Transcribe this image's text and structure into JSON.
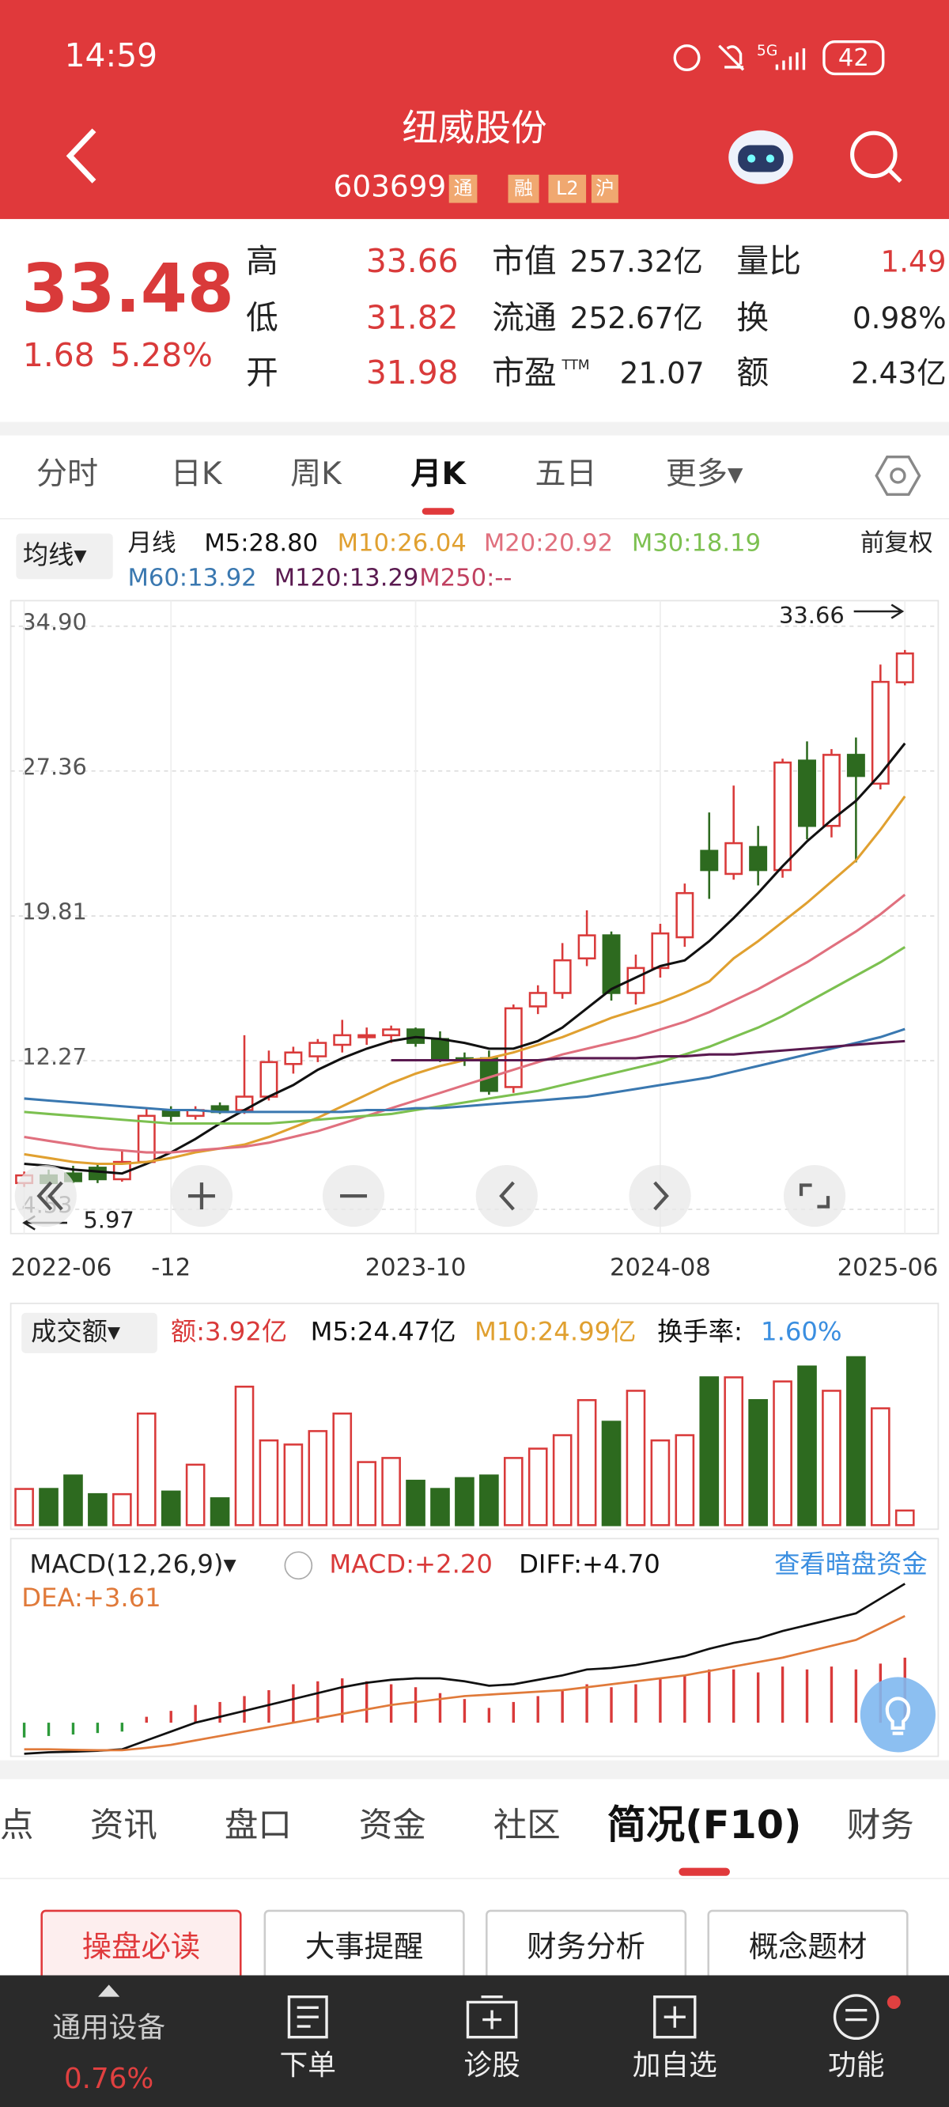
{
  "status_bar": {
    "time": "14:59",
    "battery": "42"
  },
  "header": {
    "title": "纽威股份",
    "code": "603699",
    "badges": [
      "通",
      "融",
      "L2",
      "沪"
    ]
  },
  "quote": {
    "price": "33.48",
    "change": "1.68",
    "change_pct": "5.28%",
    "stats": [
      {
        "label": "高",
        "value": "33.66"
      },
      {
        "label": "低",
        "value": "31.82"
      },
      {
        "label": "开",
        "value": "31.98"
      },
      {
        "label": "市值",
        "value": "257.32亿"
      },
      {
        "label": "流通",
        "value": "252.67亿"
      },
      {
        "label": "市盈",
        "sup": "TTM",
        "value": "21.07"
      },
      {
        "label": "量比",
        "value": "1.49"
      },
      {
        "label": "换",
        "value": "0.98%"
      },
      {
        "label": "额",
        "value": "2.43亿"
      }
    ]
  },
  "tabs": [
    "分时",
    "日K",
    "周K",
    "月K",
    "五日",
    "更多▾"
  ],
  "active_tab": 3,
  "ma_bar": {
    "selector": "均线▾",
    "period": "月线",
    "adjust": "前复权"
  },
  "chart_data": [
    {
      "type": "candlestick",
      "categories": [
        "2022-06",
        null,
        null,
        null,
        null,
        null,
        "-12",
        null,
        null,
        null,
        null,
        null,
        null,
        null,
        null,
        null,
        "2023-10",
        null,
        null,
        null,
        null,
        null,
        null,
        null,
        null,
        null,
        "2024-08",
        null,
        null,
        null,
        null,
        null,
        null,
        null,
        null,
        null,
        "2025-06"
      ],
      "open": [
        5.9,
        6.3,
        6.4,
        6.7,
        6.1,
        7.0,
        9.7,
        9.4,
        9.9,
        9.7,
        10.4,
        12.1,
        12.5,
        13.1,
        13.5,
        13.6,
        13.9,
        13.4,
        12.4,
        12.4,
        10.9,
        15.1,
        15.8,
        17.6,
        18.8,
        15.8,
        17.1,
        18.7,
        23.2,
        22.0,
        23.4,
        22.2,
        27.9,
        24.5,
        28.2,
        26.7,
        31.98
      ],
      "high": [
        6.5,
        6.6,
        6.8,
        6.9,
        7.6,
        9.8,
        9.9,
        9.9,
        10.1,
        13.6,
        12.8,
        13.0,
        13.4,
        14.4,
        14.0,
        14.1,
        14.0,
        13.8,
        12.7,
        12.8,
        15.2,
        16.2,
        18.4,
        20.1,
        19.0,
        17.8,
        19.4,
        21.5,
        25.2,
        26.6,
        24.5,
        28.0,
        28.9,
        28.5,
        29.1,
        32.9,
        33.66
      ],
      "low": [
        5.7,
        5.8,
        5.9,
        5.9,
        5.97,
        6.9,
        9.1,
        9.2,
        9.5,
        9.5,
        10.2,
        11.6,
        12.2,
        12.7,
        13.1,
        13.2,
        13.0,
        12.2,
        12.0,
        10.5,
        10.6,
        14.7,
        15.5,
        17.2,
        15.4,
        15.2,
        16.6,
        18.2,
        20.7,
        21.7,
        21.4,
        21.8,
        23.8,
        23.9,
        22.6,
        26.4,
        31.82
      ],
      "close": [
        6.3,
        5.9,
        6.0,
        6.1,
        7.0,
        9.4,
        9.4,
        9.7,
        9.6,
        10.4,
        12.2,
        12.7,
        13.2,
        13.6,
        13.6,
        13.9,
        13.2,
        12.4,
        12.3,
        10.7,
        15.0,
        15.8,
        17.5,
        18.8,
        15.8,
        17.1,
        18.9,
        21.0,
        22.2,
        23.6,
        22.2,
        27.8,
        24.5,
        28.2,
        27.1,
        32.0,
        33.48
      ],
      "up_color": "#d93a3a",
      "down_color": "#2d6a1f",
      "ylim": [
        4.53,
        34.9
      ],
      "yticks": [
        {
          "value": 34.9,
          "label": "34.90"
        },
        27.36,
        19.81,
        12.27,
        4.53
      ],
      "grid": true,
      "high_label": 33.66,
      "low_label": 5.97,
      "series": [
        {
          "name": "M5:28.80",
          "color": "#111111",
          "values": [
            6.9,
            6.8,
            6.6,
            6.5,
            6.4,
            6.9,
            7.5,
            8.2,
            9.0,
            9.7,
            10.4,
            11.0,
            11.8,
            12.4,
            12.9,
            13.3,
            13.5,
            13.4,
            13.2,
            12.9,
            12.9,
            13.3,
            14.0,
            15.0,
            16.0,
            16.6,
            17.2,
            17.5,
            18.5,
            19.7,
            21.0,
            22.4,
            23.7,
            24.8,
            25.8,
            27.2,
            28.8
          ]
        },
        {
          "name": "M10:26.04",
          "color": "#e0a030",
          "values": [
            7.4,
            7.2,
            7.0,
            6.9,
            6.9,
            7.0,
            7.2,
            7.5,
            7.7,
            7.9,
            8.3,
            8.8,
            9.3,
            9.9,
            10.5,
            11.1,
            11.6,
            12.0,
            12.3,
            12.4,
            12.7,
            13.1,
            13.5,
            14.0,
            14.5,
            14.9,
            15.3,
            15.8,
            16.4,
            17.6,
            18.5,
            19.5,
            20.5,
            21.6,
            22.7,
            24.3,
            26.04
          ]
        },
        {
          "name": "M20:20.92",
          "color": "#e0707e",
          "values": [
            8.3,
            8.1,
            7.9,
            7.7,
            7.6,
            7.5,
            7.5,
            7.6,
            7.7,
            7.8,
            8.0,
            8.3,
            8.6,
            9.0,
            9.4,
            9.8,
            10.2,
            10.6,
            11.0,
            11.4,
            11.8,
            12.2,
            12.6,
            12.9,
            13.2,
            13.5,
            13.9,
            14.3,
            14.8,
            15.4,
            16.0,
            16.7,
            17.4,
            18.2,
            19.0,
            19.9,
            20.92
          ]
        },
        {
          "name": "M30:18.19",
          "color": "#7cc050",
          "values": [
            9.6,
            9.5,
            9.4,
            9.3,
            9.2,
            9.1,
            9.0,
            9.0,
            9.0,
            9.0,
            9.0,
            9.1,
            9.2,
            9.3,
            9.4,
            9.5,
            9.7,
            9.9,
            10.1,
            10.3,
            10.5,
            10.7,
            11.0,
            11.3,
            11.6,
            11.9,
            12.2,
            12.6,
            13.0,
            13.5,
            14.0,
            14.6,
            15.3,
            16.0,
            16.7,
            17.4,
            18.19
          ]
        },
        {
          "name": "M60:13.92",
          "color": "#3a78b0",
          "values": [
            10.3,
            10.2,
            10.1,
            10.0,
            9.9,
            9.8,
            9.7,
            9.7,
            9.6,
            9.6,
            9.6,
            9.6,
            9.6,
            9.6,
            9.7,
            9.7,
            9.8,
            9.8,
            9.9,
            10.0,
            10.1,
            10.2,
            10.3,
            10.4,
            10.6,
            10.8,
            11.0,
            11.2,
            11.4,
            11.7,
            12.0,
            12.3,
            12.6,
            12.9,
            13.2,
            13.5,
            13.92
          ]
        },
        {
          "name": "M120:13.29",
          "color": "#5a1a50",
          "values": [
            null,
            null,
            null,
            null,
            null,
            null,
            null,
            null,
            null,
            null,
            null,
            null,
            null,
            null,
            null,
            12.3,
            12.3,
            12.3,
            12.3,
            12.3,
            12.3,
            12.3,
            12.4,
            12.4,
            12.4,
            12.4,
            12.5,
            12.5,
            12.6,
            12.6,
            12.7,
            12.8,
            12.9,
            13.0,
            13.1,
            13.2,
            13.29
          ]
        },
        {
          "name": "M250:--",
          "color": "#c04060",
          "values": [
            null,
            null,
            null,
            null,
            null,
            null,
            null,
            null,
            null,
            null,
            null,
            null,
            null,
            null,
            null,
            null,
            null,
            null,
            null,
            null,
            null,
            null,
            null,
            null,
            null,
            null,
            null,
            null,
            null,
            null,
            null,
            null,
            null,
            null,
            null,
            null,
            null
          ]
        }
      ]
    },
    {
      "type": "bar",
      "title": "成交额▾",
      "legend": [
        {
          "text": "额:3.92亿",
          "color": "#d93a3a"
        },
        {
          "text": "M5:24.47亿",
          "color": "#111111"
        },
        {
          "text": "M10:24.99亿",
          "color": "#e0a030"
        },
        {
          "text": "换手率:",
          "color": "#111111"
        },
        {
          "text": "1.60%",
          "color": "#3a8ee0"
        }
      ],
      "values": [
        9.7,
        9.7,
        13.3,
        8.3,
        8.3,
        29.9,
        9.0,
        16.2,
        7.2,
        37.1,
        22.7,
        21.6,
        25.2,
        29.9,
        16.9,
        18.0,
        11.9,
        9.7,
        12.6,
        13.3,
        18.0,
        20.5,
        24.1,
        33.5,
        27.7,
        36.0,
        22.7,
        24.1,
        39.6,
        39.6,
        33.5,
        38.5,
        42.5,
        36.0,
        45.0,
        31.3,
        3.92
      ],
      "ylim": [
        0,
        45
      ]
    },
    {
      "type": "macd",
      "title": "MACD(12,26,9)▾",
      "link": "查看暗盘资金",
      "ylim": [
        -1.5,
        5.5
      ],
      "series": [
        {
          "name": "MACD:+2.20",
          "color": "#d93a3a",
          "negative_color": "#2d9a3a",
          "values": [
            -0.5,
            -0.45,
            -0.4,
            -0.35,
            -0.3,
            0.2,
            0.4,
            0.6,
            0.7,
            0.9,
            1.1,
            1.3,
            1.4,
            1.5,
            1.4,
            1.3,
            1.2,
            1.0,
            0.8,
            0.5,
            0.7,
            0.9,
            1.1,
            1.3,
            1.2,
            1.3,
            1.5,
            1.6,
            1.8,
            1.8,
            1.7,
            1.9,
            1.8,
            1.9,
            1.8,
            2.0,
            2.2
          ]
        },
        {
          "name": "DIFF:+4.70",
          "color": "#111111",
          "values": [
            -1.05,
            -1.0,
            -0.98,
            -0.95,
            -0.9,
            -0.6,
            -0.3,
            0.0,
            0.2,
            0.4,
            0.6,
            0.8,
            1.0,
            1.2,
            1.35,
            1.45,
            1.5,
            1.5,
            1.4,
            1.25,
            1.3,
            1.45,
            1.6,
            1.8,
            1.85,
            1.95,
            2.1,
            2.25,
            2.5,
            2.7,
            2.85,
            3.1,
            3.3,
            3.5,
            3.7,
            4.2,
            4.7
          ]
        },
        {
          "name": "DEA:+3.61",
          "color": "#e07a3a",
          "values": [
            -0.9,
            -0.9,
            -0.92,
            -0.93,
            -0.93,
            -0.85,
            -0.75,
            -0.6,
            -0.45,
            -0.3,
            -0.15,
            0.0,
            0.15,
            0.3,
            0.45,
            0.6,
            0.7,
            0.8,
            0.9,
            0.95,
            1.0,
            1.05,
            1.1,
            1.2,
            1.3,
            1.4,
            1.5,
            1.6,
            1.75,
            1.9,
            2.05,
            2.2,
            2.4,
            2.6,
            2.8,
            3.2,
            3.61
          ]
        }
      ]
    }
  ],
  "sub_tabs": [
    "点",
    "资讯",
    "盘口",
    "资金",
    "社区",
    "简况(F10)",
    "财务"
  ],
  "buttons": [
    "操盘必读",
    "大事提醒",
    "财务分析",
    "概念题材"
  ],
  "bottom_nav": {
    "sector": "通用设备",
    "sector_change": "0.76%",
    "items": [
      "下单",
      "诊股",
      "加自选",
      "功能"
    ]
  }
}
